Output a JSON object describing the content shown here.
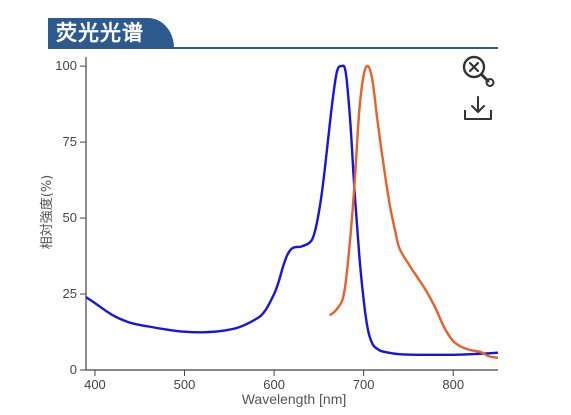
{
  "header": {
    "title": "荧光光谱"
  },
  "toolbar": {
    "zoom_reset_icon": "zoom-reset-icon",
    "download_icon": "download-icon"
  },
  "chart_data": {
    "type": "line",
    "xlabel": "Wavelength [nm]",
    "ylabel": "相対強度(%)",
    "xlim": [
      390,
      850
    ],
    "ylim": [
      0,
      103
    ],
    "x_ticks": [
      400,
      500,
      600,
      700,
      800
    ],
    "y_ticks": [
      0,
      25,
      50,
      75,
      100
    ],
    "grid": false,
    "legend": "none",
    "series": [
      {
        "color": "#1515e0",
        "x": [
          390,
          400,
          420,
          440,
          460,
          480,
          500,
          520,
          540,
          560,
          580,
          590,
          600,
          605,
          610,
          615,
          620,
          625,
          630,
          640,
          645,
          650,
          655,
          660,
          665,
          670,
          675,
          680,
          685,
          690,
          695,
          700,
          705,
          710,
          715,
          720,
          730,
          740,
          760,
          780,
          800,
          820,
          840,
          850
        ],
        "y": [
          24,
          22,
          18,
          15.5,
          14.3,
          13.3,
          12.6,
          12.4,
          12.8,
          14,
          16.8,
          19.5,
          25,
          29,
          34,
          38,
          40,
          40.5,
          40.6,
          42,
          45,
          52,
          62,
          75,
          88,
          98,
          100,
          98,
          82,
          58,
          38,
          23,
          13,
          8.5,
          7,
          6.2,
          5.6,
          5.2,
          5,
          5,
          5,
          5.2,
          5.5,
          5.7
        ]
      },
      {
        "color": "#e8602c",
        "x": [
          662,
          670,
          678,
          684,
          690,
          695,
          700,
          705,
          710,
          715,
          720,
          725,
          730,
          735,
          740,
          750,
          760,
          770,
          780,
          790,
          800,
          810,
          820,
          830,
          840,
          850
        ],
        "y": [
          18,
          20,
          25,
          40,
          62,
          85,
          97,
          100,
          95,
          83,
          72,
          62,
          53,
          46,
          40,
          35,
          30.5,
          26,
          20.5,
          14,
          9.5,
          7.5,
          6.5,
          6,
          4.5,
          4
        ]
      }
    ]
  }
}
